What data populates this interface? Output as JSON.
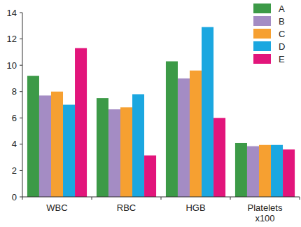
{
  "chart_data": {
    "type": "bar",
    "categories": [
      "WBC",
      "RBC",
      "HGB",
      "Platelets\nx100"
    ],
    "series": [
      {
        "name": "A",
        "color": "#3c9a47",
        "values": [
          9.2,
          7.5,
          10.3,
          4.1
        ]
      },
      {
        "name": "B",
        "color": "#a48cc4",
        "values": [
          7.7,
          6.65,
          9.0,
          3.85
        ]
      },
      {
        "name": "C",
        "color": "#f6a031",
        "values": [
          8.0,
          6.8,
          9.6,
          3.95
        ]
      },
      {
        "name": "D",
        "color": "#1ba7e0",
        "values": [
          7.0,
          7.8,
          12.9,
          3.95
        ]
      },
      {
        "name": "E",
        "color": "#e2157b",
        "values": [
          11.3,
          3.15,
          6.0,
          3.6
        ]
      }
    ],
    "ylim": [
      0,
      14
    ],
    "yticks": [
      0,
      2,
      4,
      6,
      8,
      10,
      12,
      14
    ],
    "grid": false,
    "legend": "upper right"
  }
}
